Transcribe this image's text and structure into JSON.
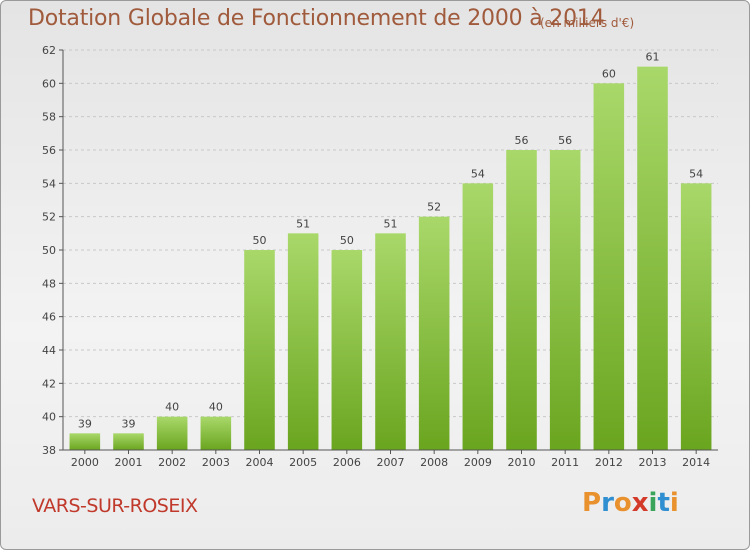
{
  "header": {
    "title": "Dotation Globale de Fonctionnement de 2000 à 2014",
    "unit": "(en milliers d'€)"
  },
  "footer": {
    "commune": "VARS-SUR-ROSEIX",
    "logo": "Proxiti",
    "logo_colors": [
      "#e8912d",
      "#2f8fd0",
      "#e8912d",
      "#d43a2a",
      "#3aa55a",
      "#2f8fd0",
      "#e8912d"
    ]
  },
  "colors": {
    "bar_top": "#a9d86a",
    "bar_bottom": "#6aa51f",
    "title": "#a05a3c",
    "commune": "#c0392b",
    "grid": "#c8c8c8"
  },
  "chart_data": {
    "type": "bar",
    "title": "Dotation Globale de Fonctionnement de 2000 à 2014",
    "subtitle": "(en milliers d'€)",
    "xlabel": "",
    "ylabel": "",
    "categories": [
      "2000",
      "2001",
      "2002",
      "2003",
      "2004",
      "2005",
      "2006",
      "2007",
      "2008",
      "2009",
      "2010",
      "2011",
      "2012",
      "2013",
      "2014"
    ],
    "values": [
      39,
      39,
      40,
      40,
      50,
      51,
      50,
      51,
      52,
      54,
      56,
      56,
      60,
      61,
      54
    ],
    "ylim": [
      38,
      62
    ],
    "yticks": [
      38,
      40,
      42,
      44,
      46,
      48,
      50,
      52,
      54,
      56,
      58,
      60,
      62
    ],
    "grid": true,
    "data_labels": true
  }
}
